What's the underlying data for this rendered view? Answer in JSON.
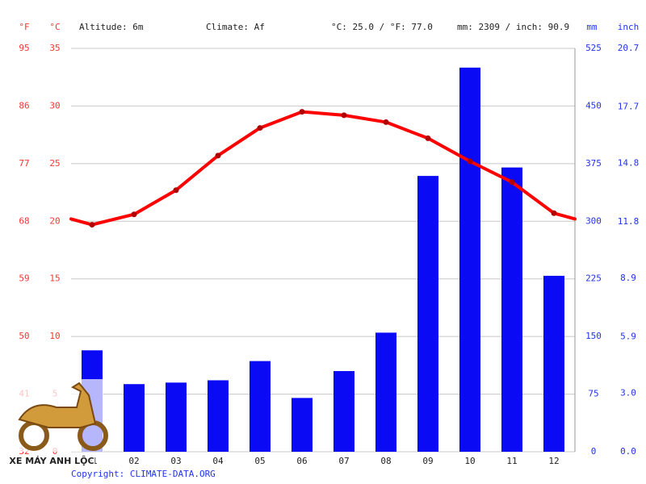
{
  "chart_data": {
    "type": "combo",
    "y_unit": "°C",
    "yf_unit": "°F",
    "y2_unit": "mm",
    "y2in_unit": "inch",
    "altitude": "Altitude: 6m",
    "climate": "Climate: Af",
    "averages": "°C: 25.0 / °F: 77.0",
    "totals": "mm: 2309 / inch: 90.9",
    "copyright": "Copyright: CLIMATE-DATA.ORG",
    "watermark": "XE MÁY ANH LỘC",
    "categories": [
      "01",
      "02",
      "03",
      "04",
      "05",
      "06",
      "07",
      "08",
      "09",
      "10",
      "11",
      "12"
    ],
    "series": [
      {
        "type": "bar",
        "axis": "y2",
        "color": "#0a0af5",
        "values": [
          132,
          88,
          90,
          93,
          118,
          70,
          105,
          155,
          359,
          500,
          370,
          229
        ]
      },
      {
        "type": "line",
        "axis": "y",
        "color": "#ff0000",
        "values": [
          19.7,
          20.6,
          22.7,
          25.7,
          28.1,
          29.5,
          29.2,
          28.6,
          27.2,
          25.2,
          23.4,
          20.7
        ]
      }
    ],
    "ylim": [
      0,
      35
    ],
    "yticks": [
      0,
      5,
      10,
      15,
      20,
      25,
      30,
      35
    ],
    "yflim": [
      32,
      95
    ],
    "yfticks": [
      32,
      41,
      50,
      59,
      68,
      77,
      86,
      95
    ],
    "y2lim": [
      0,
      525
    ],
    "y2ticks": [
      0,
      75,
      150,
      225,
      300,
      375,
      450,
      525
    ],
    "y2inlim": [
      0,
      20.7
    ],
    "y2inticks": [
      {
        "value": 0,
        "label": "0.0"
      },
      {
        "value": 3,
        "label": "3.0"
      },
      5.9,
      8.9,
      11.8,
      14.8,
      17.7,
      20.7
    ],
    "grid": true
  }
}
